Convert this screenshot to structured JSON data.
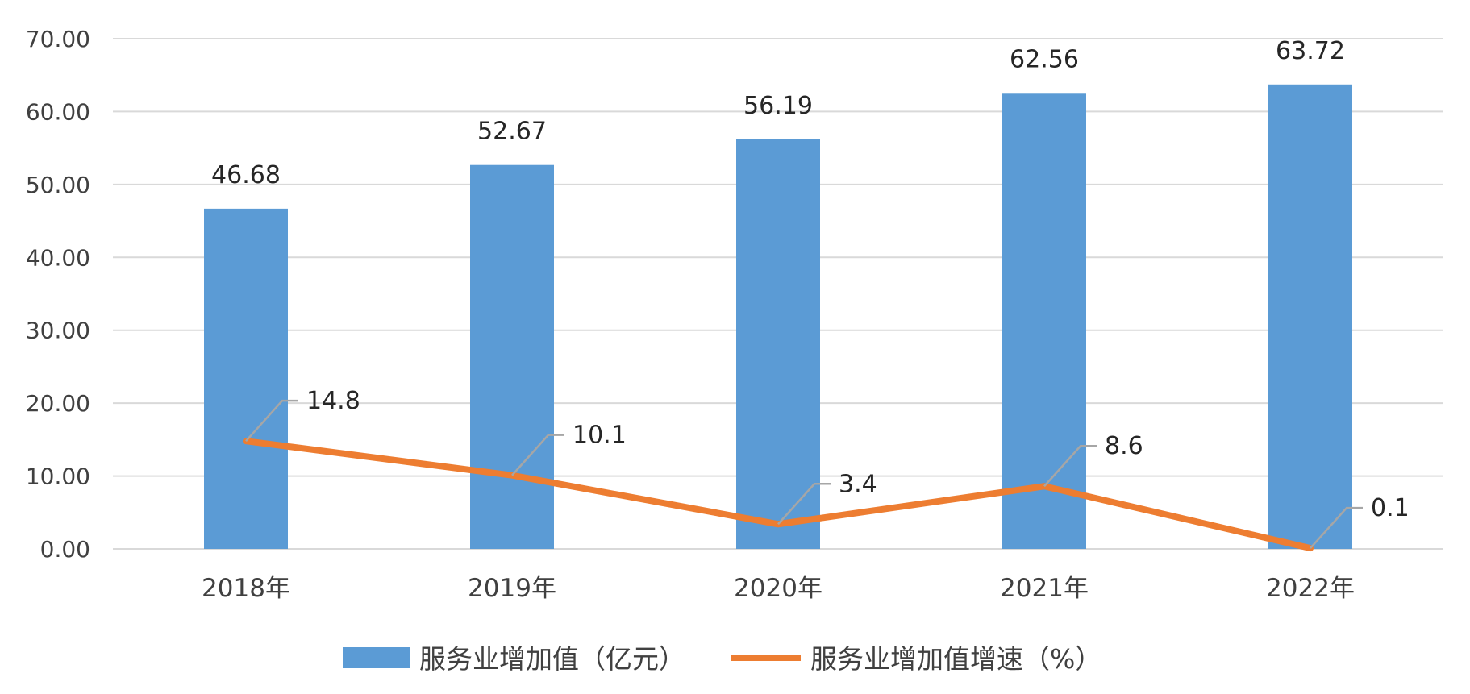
{
  "chart_data": {
    "type": "bar",
    "categories": [
      "2018年",
      "2019年",
      "2020年",
      "2021年",
      "2022年"
    ],
    "series": [
      {
        "name": "服务业增加值（亿元）",
        "type": "bar",
        "color": "#5B9BD5",
        "values": [
          46.68,
          52.67,
          56.19,
          62.56,
          63.72
        ],
        "labels": [
          "46.68",
          "52.67",
          "56.19",
          "62.56",
          "63.72"
        ]
      },
      {
        "name": "服务业增加值增速（%）",
        "type": "line",
        "color": "#ED7D31",
        "values": [
          14.8,
          10.1,
          3.4,
          8.6,
          0.1
        ],
        "labels": [
          "14.8",
          "10.1",
          "3.4",
          "8.6",
          "0.1"
        ]
      }
    ],
    "y_ticks": [
      "0.00",
      "10.00",
      "20.00",
      "30.00",
      "40.00",
      "50.00",
      "60.00",
      "70.00"
    ],
    "ylim": [
      0,
      70
    ],
    "grid": true,
    "legend_position": "bottom",
    "title": "",
    "xlabel": "",
    "ylabel": ""
  }
}
